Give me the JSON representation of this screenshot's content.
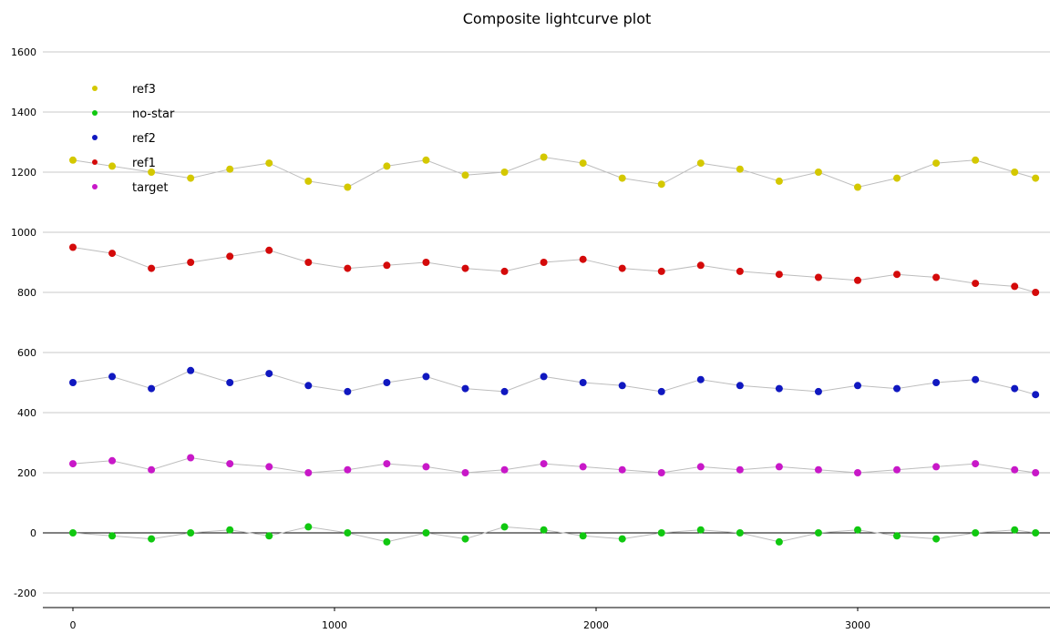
{
  "chart_data": {
    "type": "scatter",
    "title": "Composite lightcurve plot",
    "xlabel": "",
    "ylabel": "",
    "xlim": [
      -120,
      3700
    ],
    "ylim": [
      -240,
      1640
    ],
    "x_ticks": [
      0,
      1000,
      2000,
      3000
    ],
    "y_ticks": [
      -200,
      0,
      200,
      400,
      600,
      800,
      1000,
      1200,
      1400,
      1600
    ],
    "grid": "horizontal",
    "zero_line": true,
    "connecting_lines": true,
    "legend_position": "top-left",
    "legend": [
      "ref3",
      "no-star",
      "ref2",
      "ref1",
      "target"
    ],
    "series": [
      {
        "name": "ref3",
        "color": "#d4c800",
        "x": [
          0,
          150,
          300,
          450,
          600,
          750,
          900,
          1050,
          1200,
          1350,
          1500,
          1650,
          1800,
          1950,
          2100,
          2250,
          2400,
          2550,
          2700,
          2850,
          3000,
          3150,
          3300,
          3450,
          3600,
          3680
        ],
        "y": [
          1240,
          1220,
          1200,
          1180,
          1210,
          1230,
          1170,
          1150,
          1220,
          1240,
          1190,
          1200,
          1250,
          1230,
          1180,
          1160,
          1230,
          1210,
          1170,
          1200,
          1150,
          1180,
          1230,
          1240,
          1200,
          1180
        ]
      },
      {
        "name": "no-star",
        "color": "#10c810",
        "x": [
          0,
          150,
          300,
          450,
          600,
          750,
          900,
          1050,
          1200,
          1350,
          1500,
          1650,
          1800,
          1950,
          2100,
          2250,
          2400,
          2550,
          2700,
          2850,
          3000,
          3150,
          3300,
          3450,
          3600,
          3680
        ],
        "y": [
          0,
          -10,
          -20,
          0,
          10,
          -10,
          20,
          0,
          -30,
          0,
          -20,
          20,
          10,
          -10,
          -20,
          0,
          10,
          0,
          -30,
          0,
          10,
          -10,
          -20,
          0,
          10,
          0
        ]
      },
      {
        "name": "ref2",
        "color": "#1018c0",
        "x": [
          0,
          150,
          300,
          450,
          600,
          750,
          900,
          1050,
          1200,
          1350,
          1500,
          1650,
          1800,
          1950,
          2100,
          2250,
          2400,
          2550,
          2700,
          2850,
          3000,
          3150,
          3300,
          3450,
          3600,
          3680
        ],
        "y": [
          500,
          520,
          480,
          540,
          500,
          530,
          490,
          470,
          500,
          520,
          480,
          470,
          520,
          500,
          490,
          470,
          510,
          490,
          480,
          470,
          490,
          480,
          500,
          510,
          480,
          460
        ]
      },
      {
        "name": "ref1",
        "color": "#d40a0a",
        "x": [
          0,
          150,
          300,
          450,
          600,
          750,
          900,
          1050,
          1200,
          1350,
          1500,
          1650,
          1800,
          1950,
          2100,
          2250,
          2400,
          2550,
          2700,
          2850,
          3000,
          3150,
          3300,
          3450,
          3600,
          3680
        ],
        "y": [
          950,
          930,
          880,
          900,
          920,
          940,
          900,
          880,
          890,
          900,
          880,
          870,
          900,
          910,
          880,
          870,
          890,
          870,
          860,
          850,
          840,
          860,
          850,
          830,
          820,
          800
        ]
      },
      {
        "name": "target",
        "color": "#c818c8",
        "x": [
          0,
          150,
          300,
          450,
          600,
          750,
          900,
          1050,
          1200,
          1350,
          1500,
          1650,
          1800,
          1950,
          2100,
          2250,
          2400,
          2550,
          2700,
          2850,
          3000,
          3150,
          3300,
          3450,
          3600,
          3680
        ],
        "y": [
          230,
          240,
          210,
          250,
          230,
          220,
          200,
          210,
          230,
          220,
          200,
          210,
          230,
          220,
          210,
          200,
          220,
          210,
          220,
          210,
          200,
          210,
          220,
          230,
          210,
          200
        ]
      }
    ]
  }
}
